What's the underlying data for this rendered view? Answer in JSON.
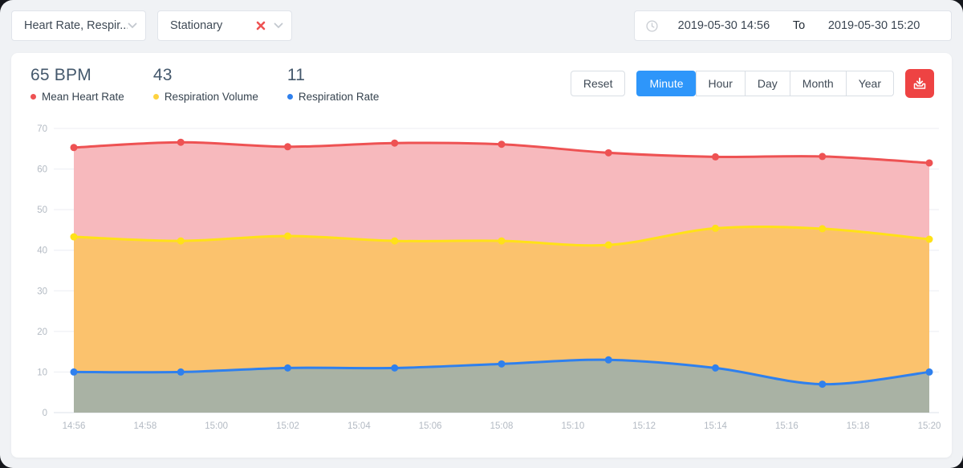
{
  "filters": {
    "metric_select": {
      "value": "Heart Rate, Respir..."
    },
    "activity_select": {
      "value": "Stationary"
    }
  },
  "date_range": {
    "start": "2019-05-30 14:56",
    "separator_label": "To",
    "end": "2019-05-30 15:20"
  },
  "stats": [
    {
      "value": "65 BPM",
      "label": "Mean Heart Rate",
      "color": "#ee5253"
    },
    {
      "value": "43",
      "label": "Respiration Volume",
      "color": "#fdd23f"
    },
    {
      "value": "11",
      "label": "Respiration Rate",
      "color": "#2f80ed"
    }
  ],
  "toolbar": {
    "reset_label": "Reset",
    "granularity_options": [
      "Minute",
      "Hour",
      "Day",
      "Month",
      "Year"
    ],
    "active_granularity": "Minute",
    "accent_color": "#2e96fa",
    "export_color": "#ee4343"
  },
  "chart_data": {
    "type": "area",
    "title": "",
    "xlabel": "",
    "ylabel": "",
    "x": [
      "14:56",
      "14:59",
      "15:02",
      "15:05",
      "15:08",
      "15:11",
      "15:14",
      "15:17",
      "15:20"
    ],
    "x_tick_labels": [
      "14:56",
      "14:58",
      "15:00",
      "15:02",
      "15:04",
      "15:06",
      "15:08",
      "15:10",
      "15:12",
      "15:14",
      "15:16",
      "15:18",
      "15:20"
    ],
    "y_ticks": [
      0,
      10,
      20,
      30,
      40,
      50,
      60,
      70
    ],
    "ylim": [
      0,
      70
    ],
    "grid": true,
    "smooth": true,
    "legend_position": "top-left-stats",
    "series": [
      {
        "name": "Mean Heart Rate",
        "line_color": "#ee5253",
        "fill_color": "#f7b9bd",
        "values": [
          65.3,
          66.6,
          65.5,
          66.4,
          66.1,
          64.0,
          63.0,
          63.1,
          61.5
        ]
      },
      {
        "name": "Respiration Volume",
        "line_color": "#ffe118",
        "fill_color": "#fbc26d",
        "values": [
          43.3,
          42.3,
          43.5,
          42.3,
          42.3,
          41.3,
          45.4,
          45.3,
          42.7
        ]
      },
      {
        "name": "Respiration Rate",
        "line_color": "#2f80ed",
        "fill_color": "#a9b2a4",
        "values": [
          10,
          10,
          11,
          11,
          12,
          13,
          11,
          7,
          10
        ]
      }
    ]
  }
}
